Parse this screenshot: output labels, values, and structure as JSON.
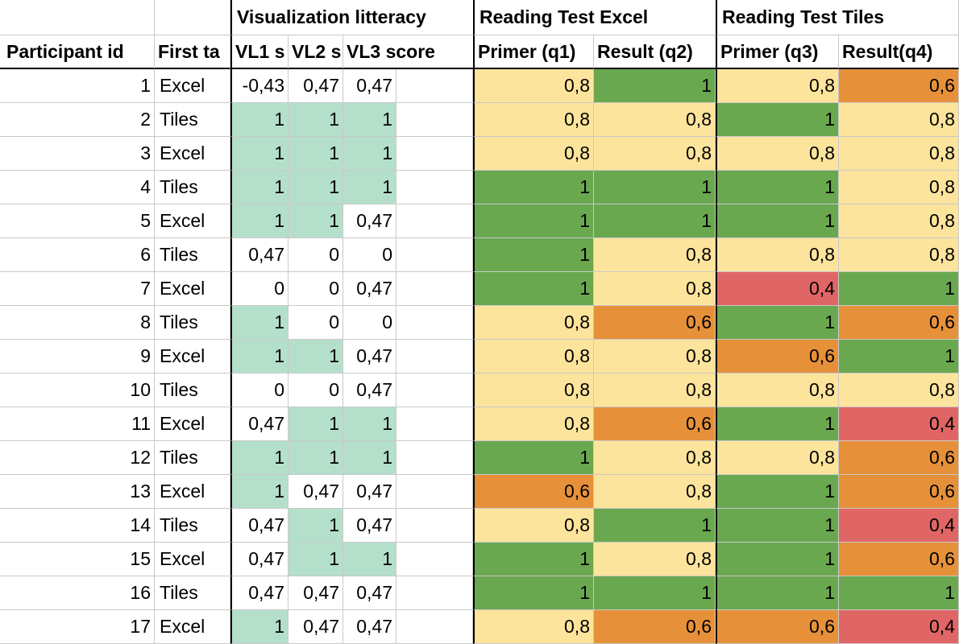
{
  "sheet": {
    "group_headers": {
      "visualization": "Visualization litteracy",
      "reading_excel": "Reading Test Excel",
      "reading_tiles": "Reading Test Tiles"
    },
    "column_headers": [
      "Participant id",
      "First ta",
      "VL1 s",
      "VL2 s",
      "VL3 score",
      "",
      "Primer (q1)",
      "Result (q2)",
      "Primer (q3)",
      "Result(q4)"
    ],
    "colors": {
      "mint": "#b4e0cb",
      "dark_green": "#6aa84f",
      "yellow": "#fde49c",
      "orange": "#e6913a",
      "red": "#e06666",
      "white": "#ffffff"
    },
    "rows": [
      {
        "id": "1",
        "first": "Excel",
        "vl1": "-0,43",
        "vl2": "0,47",
        "vl3": "0,47",
        "q1": "0,8",
        "q2": "1",
        "q3": "0,8",
        "q4": "0,6"
      },
      {
        "id": "2",
        "first": "Tiles",
        "vl1": "1",
        "vl2": "1",
        "vl3": "1",
        "q1": "0,8",
        "q2": "0,8",
        "q3": "1",
        "q4": "0,8"
      },
      {
        "id": "3",
        "first": "Excel",
        "vl1": "1",
        "vl2": "1",
        "vl3": "1",
        "q1": "0,8",
        "q2": "0,8",
        "q3": "0,8",
        "q4": "0,8"
      },
      {
        "id": "4",
        "first": "Tiles",
        "vl1": "1",
        "vl2": "1",
        "vl3": "1",
        "q1": "1",
        "q2": "1",
        "q3": "1",
        "q4": "0,8"
      },
      {
        "id": "5",
        "first": "Excel",
        "vl1": "1",
        "vl2": "1",
        "vl3": "0,47",
        "q1": "1",
        "q2": "1",
        "q3": "1",
        "q4": "0,8"
      },
      {
        "id": "6",
        "first": "Tiles",
        "vl1": "0,47",
        "vl2": "0",
        "vl3": "0",
        "q1": "1",
        "q2": "0,8",
        "q3": "0,8",
        "q4": "0,8"
      },
      {
        "id": "7",
        "first": "Excel",
        "vl1": "0",
        "vl2": "0",
        "vl3": "0,47",
        "q1": "1",
        "q2": "0,8",
        "q3": "0,4",
        "q4": "1"
      },
      {
        "id": "8",
        "first": "Tiles",
        "vl1": "1",
        "vl2": "0",
        "vl3": "0",
        "q1": "0,8",
        "q2": "0,6",
        "q3": "1",
        "q4": "0,6"
      },
      {
        "id": "9",
        "first": "Excel",
        "vl1": "1",
        "vl2": "1",
        "vl3": "0,47",
        "q1": "0,8",
        "q2": "0,8",
        "q3": "0,6",
        "q4": "1"
      },
      {
        "id": "10",
        "first": "Tiles",
        "vl1": "0",
        "vl2": "0",
        "vl3": "0,47",
        "q1": "0,8",
        "q2": "0,8",
        "q3": "0,8",
        "q4": "0,8"
      },
      {
        "id": "11",
        "first": "Excel",
        "vl1": "0,47",
        "vl2": "1",
        "vl3": "1",
        "q1": "0,8",
        "q2": "0,6",
        "q3": "1",
        "q4": "0,4"
      },
      {
        "id": "12",
        "first": "Tiles",
        "vl1": "1",
        "vl2": "1",
        "vl3": "1",
        "q1": "1",
        "q2": "0,8",
        "q3": "0,8",
        "q4": "0,6"
      },
      {
        "id": "13",
        "first": "Excel",
        "vl1": "1",
        "vl2": "0,47",
        "vl3": "0,47",
        "q1": "0,6",
        "q2": "0,8",
        "q3": "1",
        "q4": "0,6"
      },
      {
        "id": "14",
        "first": "Tiles",
        "vl1": "0,47",
        "vl2": "1",
        "vl3": "0,47",
        "q1": "0,8",
        "q2": "1",
        "q3": "1",
        "q4": "0,4"
      },
      {
        "id": "15",
        "first": "Excel",
        "vl1": "0,47",
        "vl2": "1",
        "vl3": "1",
        "q1": "1",
        "q2": "0,8",
        "q3": "1",
        "q4": "0,6"
      },
      {
        "id": "16",
        "first": "Tiles",
        "vl1": "0,47",
        "vl2": "0,47",
        "vl3": "0,47",
        "q1": "1",
        "q2": "1",
        "q3": "1",
        "q4": "1"
      },
      {
        "id": "17",
        "first": "Excel",
        "vl1": "1",
        "vl2": "0,47",
        "vl3": "0,47",
        "q1": "0,8",
        "q2": "0,6",
        "q3": "0,6",
        "q4": "0,4"
      }
    ]
  }
}
